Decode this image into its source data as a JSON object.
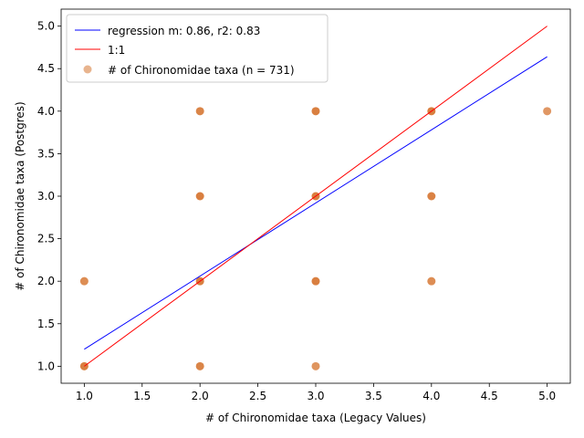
{
  "chart_data": {
    "type": "scatter",
    "xlabel": "# of Chironomidae taxa (Legacy Values)",
    "ylabel": "# of Chironomidae taxa (Postgres)",
    "xlim": [
      0.8,
      5.2
    ],
    "ylim": [
      0.8,
      5.2
    ],
    "xticks": [
      1.0,
      1.5,
      2.0,
      2.5,
      3.0,
      3.5,
      4.0,
      4.5,
      5.0
    ],
    "yticks": [
      1.0,
      1.5,
      2.0,
      2.5,
      3.0,
      3.5,
      4.0,
      4.5,
      5.0
    ],
    "xtick_labels": [
      "1.0",
      "1.5",
      "2.0",
      "2.5",
      "3.0",
      "3.5",
      "4.0",
      "4.5",
      "5.0"
    ],
    "ytick_labels": [
      "1.0",
      "1.5",
      "2.0",
      "2.5",
      "3.0",
      "3.5",
      "4.0",
      "4.5",
      "5.0"
    ],
    "grid": false,
    "legend_position": "upper-left",
    "series": [
      {
        "name": "regression m: 0.86, r2: 0.83",
        "kind": "line",
        "color": "#0000ff",
        "x": [
          1.0,
          5.0
        ],
        "y": [
          1.2,
          4.64
        ]
      },
      {
        "name": "1:1",
        "kind": "line",
        "color": "#ff0000",
        "x": [
          1.0,
          5.0
        ],
        "y": [
          1.0,
          5.0
        ]
      },
      {
        "name": "# of Chironomidae taxa (n = 731)",
        "kind": "scatter",
        "color": "#d2691e",
        "x": [
          1,
          1,
          2,
          2,
          2,
          2,
          3,
          3,
          3,
          3,
          4,
          4,
          4,
          5
        ],
        "y": [
          1,
          2,
          1,
          2,
          3,
          4,
          1,
          2,
          3,
          4,
          2,
          3,
          4,
          4
        ],
        "intensity": [
          1.0,
          0.75,
          0.9,
          1.0,
          1.0,
          0.9,
          0.6,
          1.0,
          1.0,
          1.0,
          0.75,
          0.95,
          1.0,
          0.55
        ]
      }
    ]
  }
}
